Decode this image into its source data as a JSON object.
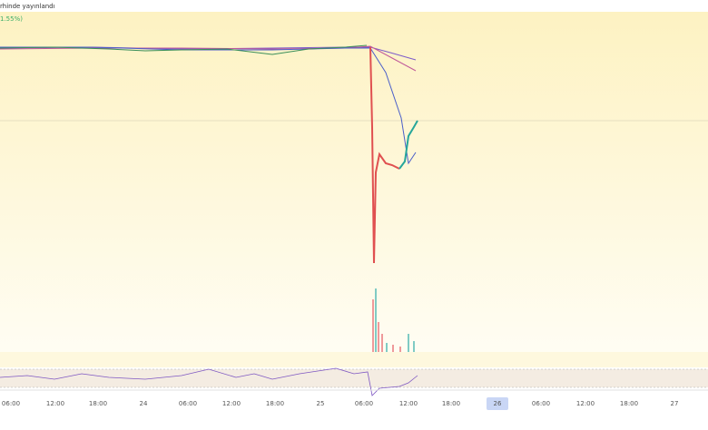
{
  "header": {
    "title": "rhinde yayınlandı",
    "change": "1.55%)"
  },
  "time_axis": {
    "labels": [
      "06:00",
      "12:00",
      "18:00",
      "24",
      "06:00",
      "12:00",
      "18:00",
      "25",
      "06:00",
      "12:00",
      "18:00",
      "26",
      "06:00",
      "12:00",
      "18:00",
      "27"
    ]
  }
}
